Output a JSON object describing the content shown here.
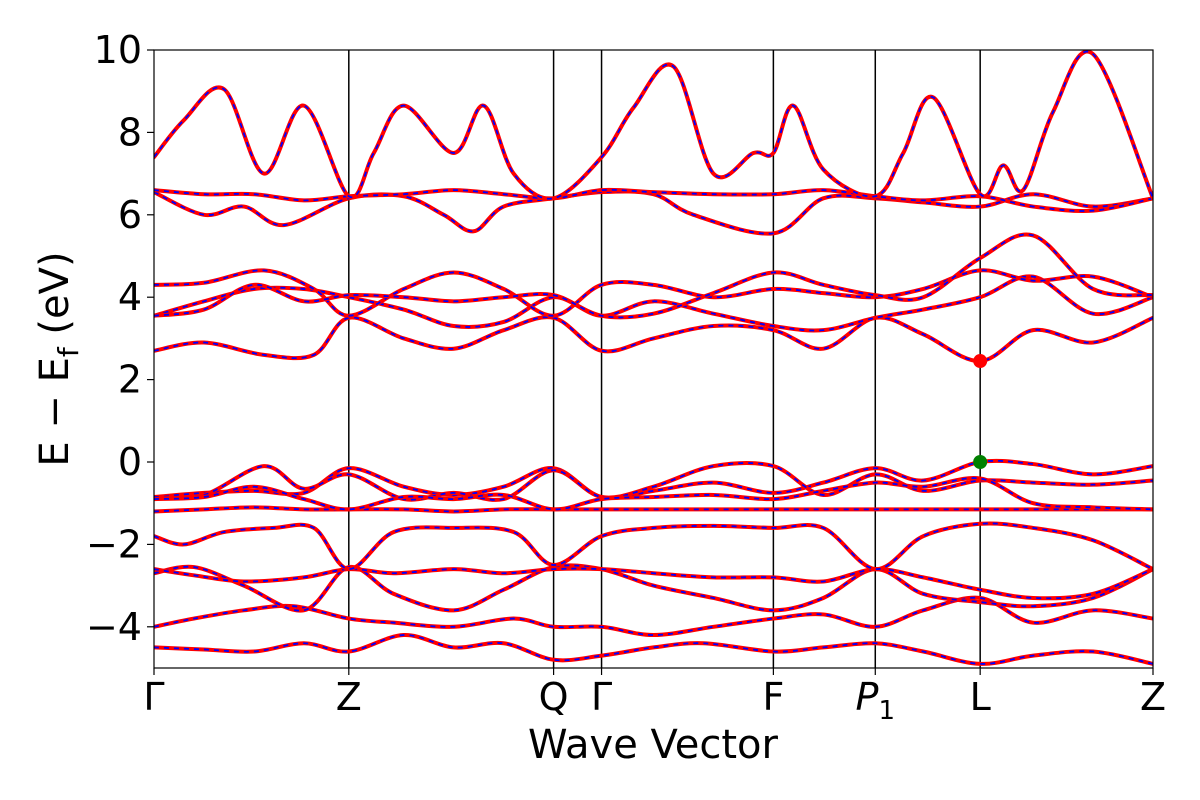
{
  "chart_data": {
    "type": "line",
    "title": "",
    "xlabel": "Wave Vector",
    "ylabel": "E − E_f (eV)",
    "ylabel_parts": {
      "main": "E − E",
      "sub": "f",
      "unit": " (eV)"
    },
    "ylim": [
      -5,
      10
    ],
    "y_ticks": [
      -4,
      -2,
      0,
      2,
      4,
      6,
      8,
      10
    ],
    "y_tick_labels": [
      "−4",
      "−2",
      "0",
      "2",
      "4",
      "6",
      "8",
      "10"
    ],
    "kpath": [
      {
        "label": "Γ",
        "x": 0.0
      },
      {
        "label": "Z",
        "x": 0.195
      },
      {
        "label": "Q",
        "x": 0.4
      },
      {
        "label": "Γ",
        "x": 0.448
      },
      {
        "label": "F",
        "x": 0.62
      },
      {
        "label": "P",
        "sub": "1",
        "italic": true,
        "x": 0.722
      },
      {
        "label": "L",
        "x": 0.827
      },
      {
        "label": "Z",
        "x": 1.0
      }
    ],
    "grid": false,
    "colors": {
      "solid": "#ff0000",
      "dashed": "#0000ff",
      "cbm": "#ff0000",
      "vbm": "#008000",
      "kline": "#000000"
    },
    "markers": [
      {
        "name": "conduction band minimum",
        "x": 0.827,
        "y": 2.45,
        "color": "#ff0000"
      },
      {
        "name": "valence band maximum",
        "x": 0.827,
        "y": 0.0,
        "color": "#008000"
      }
    ],
    "series": [
      {
        "x": [
          0,
          0.04,
          0.09,
          0.14,
          0.195,
          0.24,
          0.3,
          0.36,
          0.4,
          0.448,
          0.5,
          0.56,
          0.62,
          0.67,
          0.722,
          0.77,
          0.827,
          0.88,
          0.94,
          1.0
        ],
        "y": [
          -4.0,
          -3.8,
          -3.6,
          -3.5,
          -3.8,
          -3.9,
          -4.0,
          -3.8,
          -4.0,
          -4.0,
          -4.2,
          -4.0,
          -3.8,
          -3.7,
          -4.0,
          -3.6,
          -3.3,
          -3.9,
          -3.6,
          -3.8
        ]
      },
      {
        "x": [
          0,
          0.05,
          0.1,
          0.15,
          0.195,
          0.25,
          0.3,
          0.35,
          0.4,
          0.448,
          0.5,
          0.55,
          0.62,
          0.67,
          0.722,
          0.77,
          0.827,
          0.88,
          0.94,
          1.0
        ],
        "y": [
          -4.5,
          -4.55,
          -4.6,
          -4.4,
          -4.6,
          -4.2,
          -4.5,
          -4.4,
          -4.8,
          -4.7,
          -4.5,
          -4.4,
          -4.6,
          -4.5,
          -4.4,
          -4.6,
          -4.9,
          -4.7,
          -4.6,
          -4.9
        ]
      },
      {
        "x": [
          0,
          0.04,
          0.09,
          0.15,
          0.195,
          0.24,
          0.3,
          0.35,
          0.4,
          0.448,
          0.5,
          0.56,
          0.62,
          0.67,
          0.722,
          0.77,
          0.827,
          0.88,
          0.94,
          1.0
        ],
        "y": [
          -2.7,
          -2.55,
          -3.0,
          -3.6,
          -2.55,
          -3.2,
          -3.6,
          -3.1,
          -2.55,
          -2.6,
          -3.0,
          -3.3,
          -3.6,
          -3.3,
          -2.6,
          -3.2,
          -3.4,
          -3.5,
          -3.3,
          -2.6
        ]
      },
      {
        "x": [
          0,
          0.04,
          0.09,
          0.15,
          0.195,
          0.24,
          0.3,
          0.35,
          0.4,
          0.448,
          0.5,
          0.56,
          0.62,
          0.67,
          0.722,
          0.77,
          0.827,
          0.88,
          0.94,
          1.0
        ],
        "y": [
          -2.6,
          -2.75,
          -2.9,
          -2.8,
          -2.6,
          -2.7,
          -2.6,
          -2.7,
          -2.6,
          -2.6,
          -2.7,
          -2.8,
          -2.8,
          -2.9,
          -2.6,
          -2.8,
          -3.1,
          -3.3,
          -3.2,
          -2.6
        ]
      },
      {
        "x": [
          0,
          0.03,
          0.07,
          0.12,
          0.16,
          0.195,
          0.24,
          0.3,
          0.36,
          0.4,
          0.448,
          0.5,
          0.56,
          0.62,
          0.67,
          0.722,
          0.77,
          0.827,
          0.88,
          0.94,
          1.0
        ],
        "y": [
          -1.8,
          -2.0,
          -1.7,
          -1.6,
          -1.6,
          -2.6,
          -1.7,
          -1.6,
          -1.7,
          -2.5,
          -1.8,
          -1.6,
          -1.55,
          -1.6,
          -1.6,
          -2.6,
          -1.8,
          -1.5,
          -1.6,
          -1.9,
          -2.6
        ]
      },
      {
        "x": [
          0,
          0.05,
          0.1,
          0.15,
          0.195,
          0.25,
          0.3,
          0.35,
          0.4,
          0.448,
          0.5,
          0.56,
          0.62,
          0.67,
          0.722,
          0.77,
          0.827,
          0.88,
          0.94,
          1.0
        ],
        "y": [
          -1.2,
          -1.15,
          -1.1,
          -1.15,
          -1.15,
          -1.15,
          -1.2,
          -1.15,
          -1.15,
          -1.15,
          -1.15,
          -1.15,
          -1.15,
          -1.15,
          -1.15,
          -1.15,
          -1.15,
          -1.15,
          -1.15,
          -1.15
        ]
      },
      {
        "x": [
          0,
          0.05,
          0.1,
          0.15,
          0.195,
          0.25,
          0.3,
          0.35,
          0.4,
          0.448,
          0.5,
          0.56,
          0.62,
          0.67,
          0.722,
          0.77,
          0.827,
          0.88,
          0.94,
          1.0
        ],
        "y": [
          -0.85,
          -0.75,
          -0.7,
          -0.75,
          -0.15,
          -0.6,
          -0.8,
          -0.6,
          -0.15,
          -0.85,
          -0.7,
          -0.5,
          -0.75,
          -0.5,
          -0.15,
          -0.45,
          0.0,
          -0.05,
          -0.3,
          -0.1
        ]
      },
      {
        "x": [
          0,
          0.05,
          0.11,
          0.15,
          0.195,
          0.25,
          0.3,
          0.35,
          0.4,
          0.448,
          0.5,
          0.56,
          0.62,
          0.67,
          0.722,
          0.77,
          0.827,
          0.88,
          0.94,
          1.0
        ],
        "y": [
          -0.85,
          -0.8,
          -0.1,
          -0.65,
          -0.3,
          -0.9,
          -0.75,
          -0.9,
          -0.2,
          -0.85,
          -0.6,
          -0.1,
          -0.1,
          -0.8,
          -0.3,
          -0.7,
          -0.45,
          -0.5,
          -0.55,
          -0.45
        ]
      },
      {
        "x": [
          0,
          0.05,
          0.1,
          0.15,
          0.195,
          0.25,
          0.3,
          0.35,
          0.4,
          0.448,
          0.5,
          0.56,
          0.62,
          0.67,
          0.722,
          0.77,
          0.827,
          0.88,
          0.94,
          1.0
        ],
        "y": [
          -0.9,
          -0.85,
          -0.6,
          -0.9,
          -1.15,
          -0.85,
          -0.9,
          -0.8,
          -1.15,
          -0.9,
          -0.85,
          -0.8,
          -0.9,
          -0.7,
          -0.5,
          -0.6,
          -0.4,
          -1.0,
          -1.1,
          -1.15
        ]
      },
      {
        "x": [
          0,
          0.05,
          0.11,
          0.16,
          0.195,
          0.25,
          0.3,
          0.35,
          0.4,
          0.448,
          0.5,
          0.56,
          0.62,
          0.67,
          0.722,
          0.77,
          0.827,
          0.88,
          0.94,
          1.0
        ],
        "y": [
          2.7,
          2.9,
          2.6,
          2.6,
          3.5,
          3.0,
          2.75,
          3.2,
          3.5,
          2.7,
          3.0,
          3.3,
          3.2,
          2.75,
          3.5,
          3.1,
          2.45,
          3.2,
          2.9,
          3.5
        ]
      },
      {
        "x": [
          0,
          0.05,
          0.1,
          0.15,
          0.195,
          0.25,
          0.3,
          0.35,
          0.4,
          0.448,
          0.5,
          0.56,
          0.62,
          0.67,
          0.722,
          0.77,
          0.827,
          0.88,
          0.94,
          1.0
        ],
        "y": [
          3.55,
          3.9,
          4.2,
          4.2,
          4.0,
          3.7,
          3.3,
          3.4,
          4.0,
          3.55,
          3.9,
          3.6,
          3.3,
          3.2,
          3.5,
          3.7,
          4.0,
          4.5,
          3.6,
          4.0
        ]
      },
      {
        "x": [
          0,
          0.05,
          0.11,
          0.16,
          0.195,
          0.25,
          0.3,
          0.35,
          0.4,
          0.448,
          0.5,
          0.56,
          0.62,
          0.67,
          0.722,
          0.77,
          0.827,
          0.88,
          0.94,
          1.0
        ],
        "y": [
          4.3,
          4.35,
          4.65,
          4.2,
          3.55,
          4.2,
          4.6,
          4.2,
          3.55,
          4.3,
          4.3,
          4.0,
          4.2,
          4.1,
          4.0,
          4.2,
          4.65,
          4.4,
          4.5,
          4.0
        ]
      },
      {
        "x": [
          0,
          0.05,
          0.1,
          0.15,
          0.195,
          0.25,
          0.3,
          0.35,
          0.4,
          0.448,
          0.5,
          0.56,
          0.62,
          0.67,
          0.722,
          0.77,
          0.827,
          0.88,
          0.94,
          1.0
        ],
        "y": [
          3.55,
          3.7,
          4.3,
          3.9,
          4.05,
          4.0,
          3.9,
          4.0,
          4.05,
          3.55,
          3.6,
          4.1,
          4.6,
          4.3,
          4.05,
          4.0,
          4.95,
          5.5,
          4.2,
          4.05
        ]
      },
      {
        "x": [
          0,
          0.05,
          0.09,
          0.13,
          0.195,
          0.25,
          0.29,
          0.32,
          0.35,
          0.4,
          0.448,
          0.5,
          0.54,
          0.62,
          0.67,
          0.722,
          0.77,
          0.827,
          0.88,
          0.94,
          1.0
        ],
        "y": [
          6.55,
          6.0,
          6.2,
          5.75,
          6.4,
          6.45,
          6.0,
          5.6,
          6.2,
          6.4,
          6.55,
          6.5,
          6.0,
          5.55,
          6.4,
          6.4,
          6.3,
          6.2,
          6.5,
          6.2,
          6.4
        ]
      },
      {
        "x": [
          0,
          0.05,
          0.1,
          0.15,
          0.195,
          0.25,
          0.3,
          0.35,
          0.4,
          0.448,
          0.5,
          0.56,
          0.62,
          0.67,
          0.722,
          0.77,
          0.827,
          0.88,
          0.94,
          1.0
        ],
        "y": [
          6.6,
          6.5,
          6.5,
          6.35,
          6.45,
          6.5,
          6.6,
          6.5,
          6.4,
          6.6,
          6.55,
          6.5,
          6.5,
          6.6,
          6.45,
          6.35,
          6.45,
          6.2,
          6.1,
          6.4
        ]
      },
      {
        "x": [
          0,
          0.03,
          0.07,
          0.11,
          0.15,
          0.195,
          0.22,
          0.25,
          0.3,
          0.33,
          0.36,
          0.4,
          0.448,
          0.48,
          0.52,
          0.56,
          0.6,
          0.62,
          0.64,
          0.67,
          0.722,
          0.75,
          0.78,
          0.827,
          0.85,
          0.87,
          0.9,
          0.94,
          1.0
        ],
        "y": [
          7.4,
          8.3,
          9.05,
          7.0,
          8.65,
          6.45,
          7.5,
          8.65,
          7.5,
          8.65,
          7.0,
          6.4,
          7.4,
          8.6,
          9.6,
          7.0,
          7.5,
          7.5,
          8.65,
          7.1,
          6.45,
          7.5,
          8.85,
          6.5,
          7.2,
          6.6,
          8.5,
          9.9,
          6.4
        ]
      }
    ]
  }
}
